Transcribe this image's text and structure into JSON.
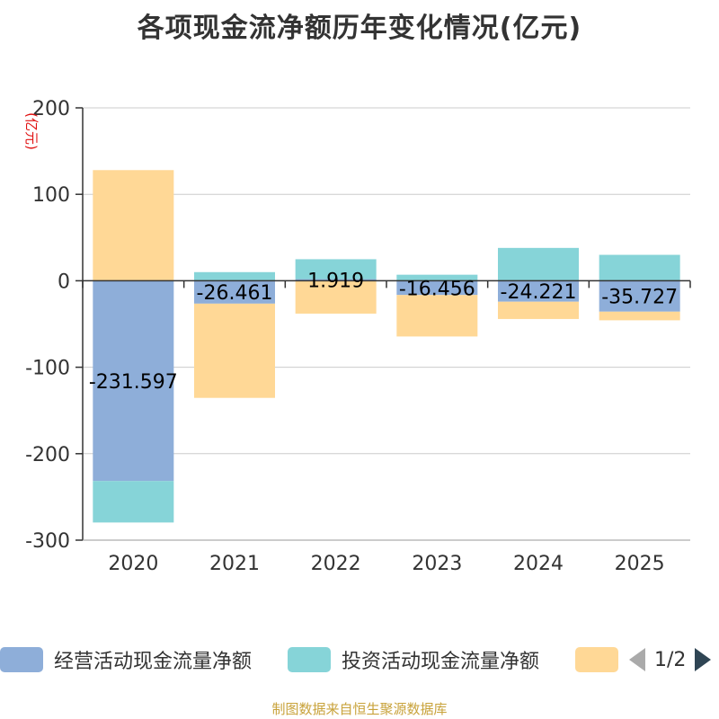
{
  "title": "各项现金流净额历年变化情况(亿元)",
  "chart_data": {
    "type": "bar",
    "stacked": true,
    "title": "各项现金流净额历年变化情况(亿元)",
    "ylabel": "(亿元)",
    "ylim": [
      -300,
      200
    ],
    "yticks": [
      200,
      100,
      0,
      -100,
      -200,
      -300
    ],
    "categories": [
      "2020",
      "2021",
      "2022",
      "2023",
      "2024",
      "2025"
    ],
    "grid": true,
    "series": [
      {
        "name": "经营活动现金流量净额",
        "color": "#8eaed9",
        "values": [
          -231.597,
          -26.461,
          1.919,
          -16.456,
          -24.221,
          -35.727
        ],
        "labels": [
          "-231.597",
          "-26.461",
          "1.919",
          "-16.456",
          "-24.221",
          "-35.727"
        ]
      },
      {
        "name": "投资活动现金流量净额",
        "color": "#86d4d8",
        "values": [
          -48,
          10,
          23,
          7,
          38,
          30
        ]
      },
      {
        "name": "",
        "color": "#ffd896",
        "values": [
          128,
          -109,
          -38,
          -48,
          -20,
          -10
        ]
      }
    ]
  },
  "legend": {
    "items": [
      {
        "label": "经营活动现金流量净额",
        "color": "#8eaed9"
      },
      {
        "label": "投资活动现金流量净额",
        "color": "#86d4d8"
      },
      {
        "label": "",
        "color": "#ffd896"
      }
    ],
    "page": "1/2"
  },
  "footer": "制图数据来自恒生聚源数据库"
}
